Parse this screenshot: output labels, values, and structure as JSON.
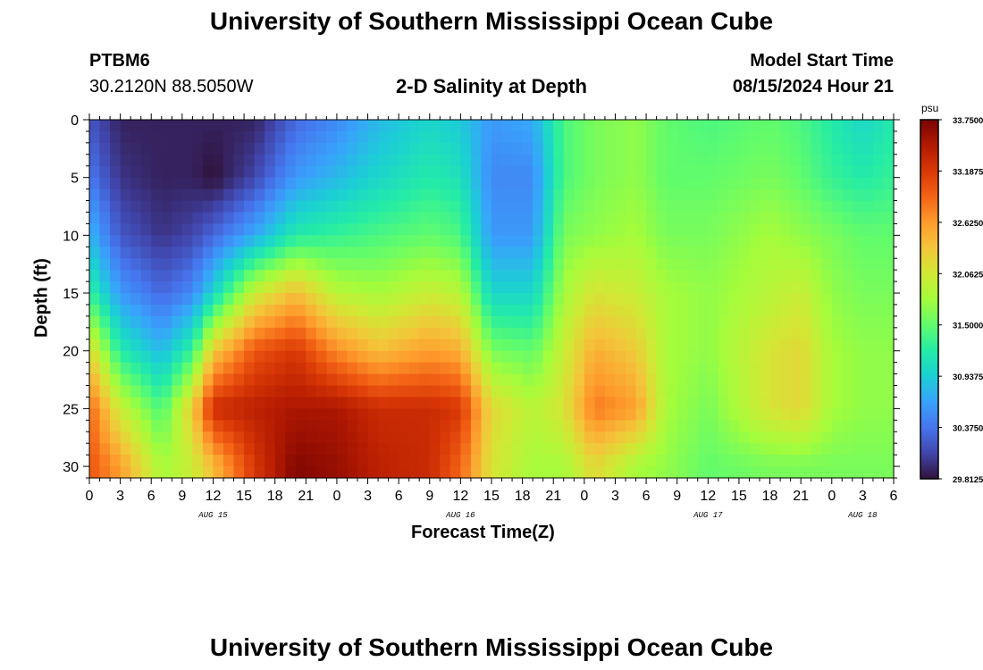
{
  "header": {
    "title": "University of Southern Mississippi Ocean Cube",
    "station_id": "PTBM6",
    "station_coords": "30.2120N  88.5050W",
    "plot_title": "2-D Salinity at Depth",
    "model_start_label": "Model Start Time",
    "model_start_value": "08/15/2024 Hour 21"
  },
  "footer": {
    "title": "University of Southern Mississippi Ocean Cube"
  },
  "colors": {
    "colormap": [
      "#30123b",
      "#4145ab",
      "#4675ed",
      "#39a2fc",
      "#1bcfd4",
      "#24eca6",
      "#61fc6c",
      "#a4fc3b",
      "#d1e834",
      "#f3c63a",
      "#fe9b2d",
      "#f36315",
      "#d93806",
      "#b11901",
      "#7a0403"
    ]
  },
  "chart_data": {
    "type": "heatmap",
    "title": "2-D Salinity at Depth",
    "xlabel": "Forecast Time(Z)",
    "ylabel": "Depth (ft)",
    "colorbar_unit": "psu",
    "colorbar_ticks": [
      "33.7500",
      "33.1875",
      "32.6250",
      "32.0625",
      "31.5000",
      "30.9375",
      "30.3750",
      "29.8125"
    ],
    "colorbar_range": [
      29.8125,
      33.75
    ],
    "x_tick_labels": [
      "0",
      "3",
      "6",
      "9",
      "12",
      "15",
      "18",
      "21",
      "0",
      "3",
      "6",
      "9",
      "12",
      "15",
      "18",
      "21",
      "0",
      "3",
      "6",
      "9",
      "12",
      "15",
      "18",
      "21",
      "0",
      "3",
      "6"
    ],
    "x_range_hours": [
      0,
      78
    ],
    "date_labels": [
      {
        "text": "AUG 15",
        "hour": 12
      },
      {
        "text": "AUG 16",
        "hour": 36
      },
      {
        "text": "AUG 17",
        "hour": 60
      },
      {
        "text": "AUG 18",
        "hour": 75
      }
    ],
    "y_tick_labels": [
      "0",
      "5",
      "10",
      "15",
      "20",
      "25",
      "30"
    ],
    "y_range_ft": [
      0,
      31
    ],
    "depth_profile_ft": [
      0,
      5,
      10,
      15,
      20,
      25,
      30
    ],
    "salinity_profiles": [
      {
        "hour": 0,
        "values": [
          30.2,
          30.4,
          30.8,
          31.3,
          32.2,
          32.9,
          33.0
        ]
      },
      {
        "hour": 3,
        "values": [
          29.9,
          30.0,
          30.2,
          30.6,
          31.2,
          32.0,
          32.6
        ]
      },
      {
        "hour": 7,
        "values": [
          29.9,
          29.9,
          30.0,
          30.3,
          30.8,
          31.4,
          31.8
        ]
      },
      {
        "hour": 10,
        "values": [
          29.9,
          29.9,
          30.1,
          30.5,
          31.3,
          32.3,
          32.0
        ]
      },
      {
        "hour": 12,
        "values": [
          29.9,
          29.8,
          30.3,
          31.0,
          32.3,
          33.3,
          32.4
        ]
      },
      {
        "hour": 16,
        "values": [
          29.9,
          30.1,
          30.7,
          32.0,
          33.0,
          33.4,
          33.2
        ]
      },
      {
        "hour": 20,
        "values": [
          30.3,
          30.6,
          31.2,
          32.4,
          33.2,
          33.5,
          33.7
        ]
      },
      {
        "hour": 24,
        "values": [
          30.5,
          30.8,
          31.3,
          31.9,
          32.7,
          33.5,
          33.6
        ]
      },
      {
        "hour": 28,
        "values": [
          30.8,
          31.0,
          31.4,
          31.8,
          32.4,
          33.3,
          33.4
        ]
      },
      {
        "hour": 33,
        "values": [
          31.0,
          31.2,
          31.5,
          32.0,
          32.6,
          33.3,
          33.3
        ]
      },
      {
        "hour": 36,
        "values": [
          30.9,
          31.1,
          31.4,
          31.9,
          32.5,
          33.2,
          32.9
        ]
      },
      {
        "hour": 39,
        "values": [
          30.6,
          30.5,
          30.6,
          31.0,
          31.6,
          32.2,
          32.1
        ]
      },
      {
        "hour": 43,
        "values": [
          30.7,
          30.5,
          30.6,
          31.0,
          31.5,
          31.9,
          31.8
        ]
      },
      {
        "hour": 46,
        "values": [
          31.4,
          31.4,
          31.6,
          31.8,
          32.0,
          32.1,
          31.8
        ]
      },
      {
        "hour": 49,
        "values": [
          31.6,
          31.6,
          31.7,
          32.1,
          32.5,
          32.8,
          32.2
        ]
      },
      {
        "hour": 53,
        "values": [
          31.7,
          31.7,
          31.8,
          32.0,
          32.3,
          32.6,
          31.8
        ]
      },
      {
        "hour": 56,
        "values": [
          31.5,
          31.5,
          31.6,
          31.8,
          31.8,
          31.8,
          31.7
        ]
      },
      {
        "hour": 60,
        "values": [
          31.4,
          31.5,
          31.6,
          31.7,
          31.7,
          31.6,
          31.5
        ]
      },
      {
        "hour": 66,
        "values": [
          31.5,
          31.6,
          31.8,
          31.9,
          32.1,
          32.1,
          31.6
        ]
      },
      {
        "hour": 69,
        "values": [
          31.4,
          31.5,
          31.7,
          32.0,
          32.2,
          32.2,
          31.6
        ]
      },
      {
        "hour": 72,
        "values": [
          31.2,
          31.3,
          31.6,
          31.7,
          31.8,
          31.8,
          31.6
        ]
      },
      {
        "hour": 75,
        "values": [
          31.0,
          31.2,
          31.5,
          31.6,
          31.7,
          31.7,
          31.6
        ]
      },
      {
        "hour": 78,
        "values": [
          31.2,
          31.3,
          31.5,
          31.6,
          31.7,
          31.7,
          31.6
        ]
      }
    ]
  }
}
